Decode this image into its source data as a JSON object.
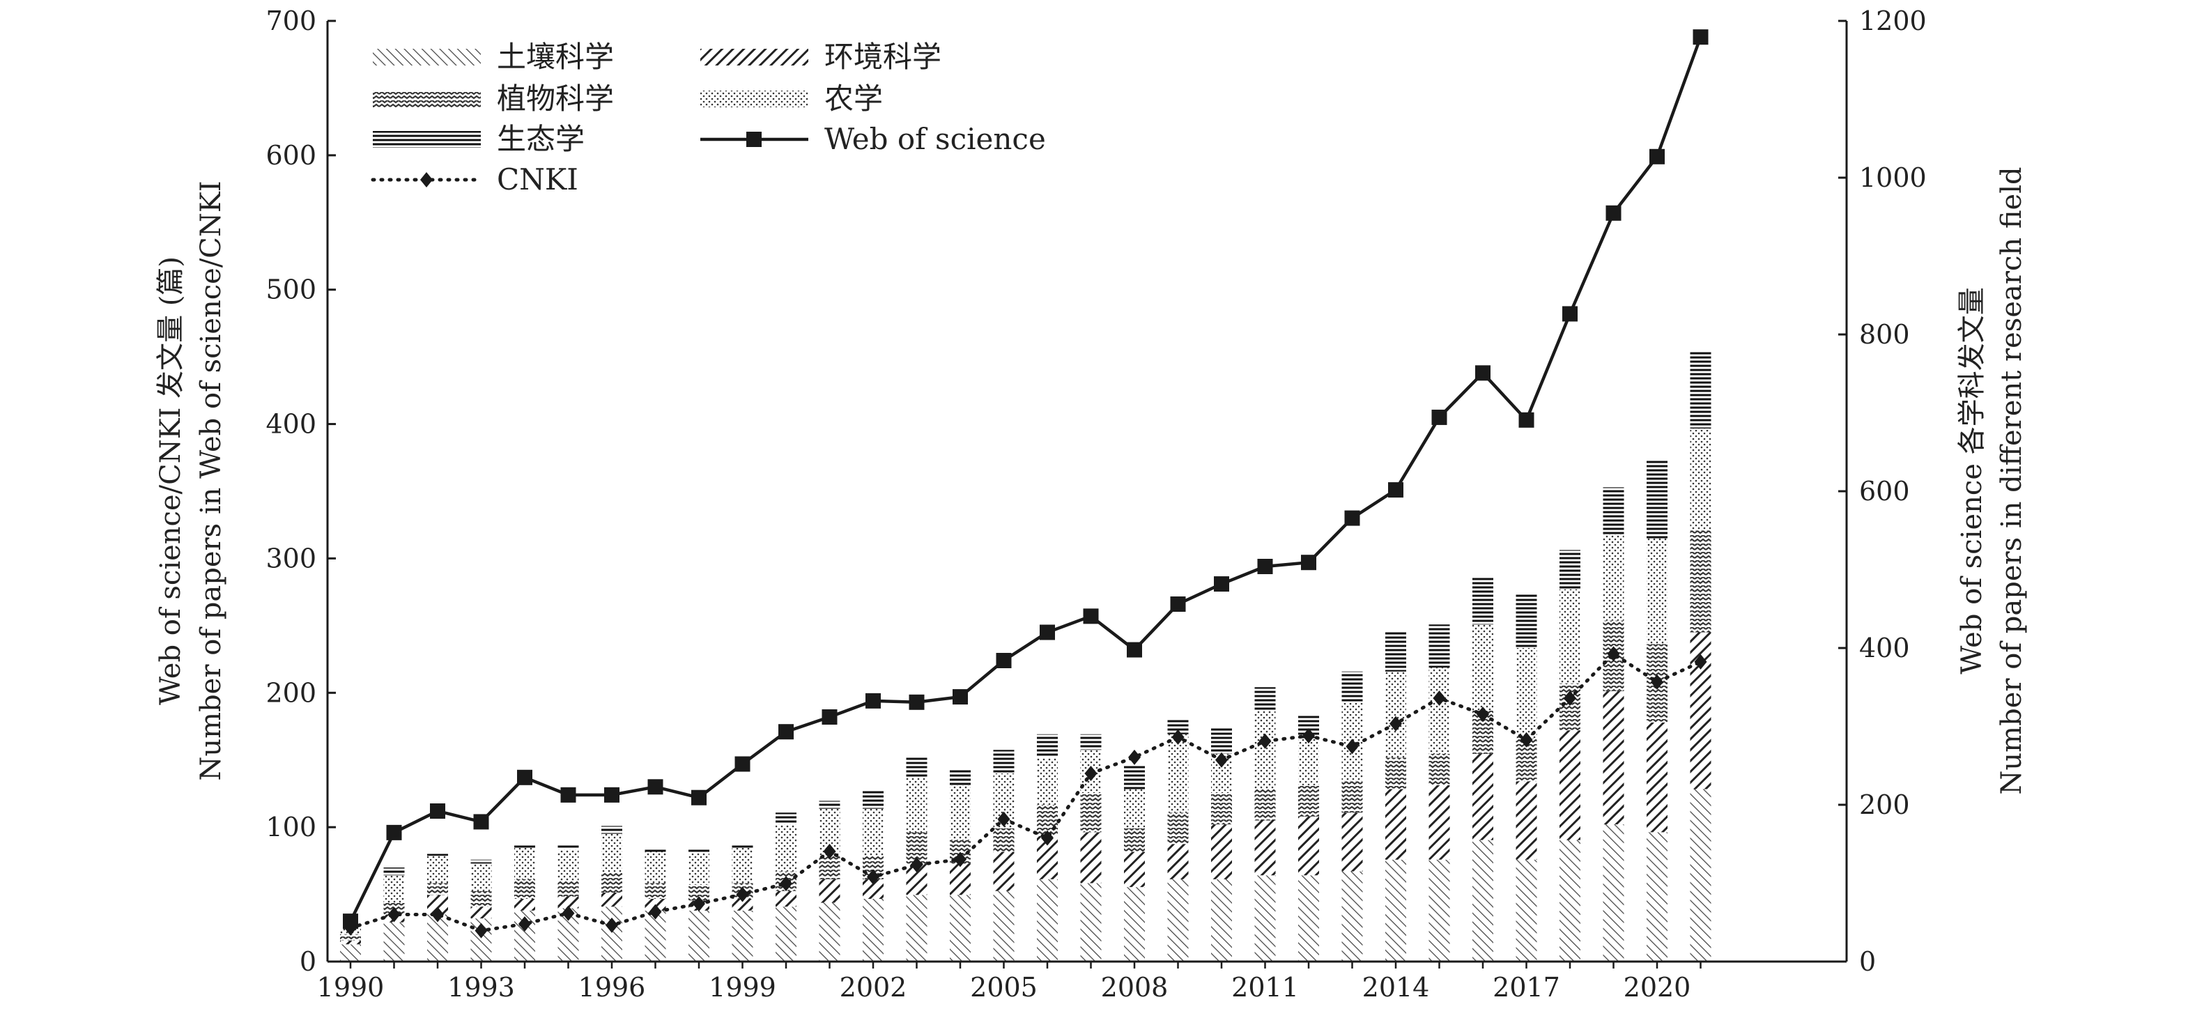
{
  "chart_data": {
    "type": "bar",
    "subtype": "stacked bar with line overlay, dual y-axis",
    "x_ticks": [
      "1990",
      "1993",
      "1996",
      "1999",
      "2002",
      "2005",
      "2008",
      "2011",
      "2014",
      "2017",
      "2020"
    ],
    "years": [
      1990,
      1991,
      1992,
      1993,
      1994,
      1995,
      1996,
      1997,
      1998,
      1999,
      2000,
      2001,
      2002,
      2003,
      2004,
      2005,
      2006,
      2007,
      2008,
      2009,
      2010,
      2011,
      2012,
      2013,
      2014,
      2015,
      2016,
      2017,
      2018,
      2019,
      2020,
      2021
    ],
    "left_axis": {
      "title_line1": "Web of science/CNKI 发文量 (篇)",
      "title_line2": "Number of papers in Web of science/CNKI",
      "ylim": [
        0,
        700
      ],
      "ticks": [
        0,
        100,
        200,
        300,
        400,
        500,
        600,
        700
      ]
    },
    "right_axis": {
      "title_line1": "Web of science 各学科发文量",
      "title_line2": "Number of papers in different research field",
      "ylim": [
        0,
        1200
      ],
      "ticks": [
        0,
        200,
        400,
        600,
        800,
        1000,
        1200
      ]
    },
    "bar_series": [
      {
        "name": "土壤科学",
        "pattern": "soil-pattern",
        "values": [
          22,
          50,
          60,
          55,
          65,
          68,
          70,
          65,
          65,
          65,
          70,
          75,
          80,
          85,
          85,
          90,
          105,
          100,
          95,
          105,
          105,
          110,
          110,
          115,
          130,
          130,
          155,
          130,
          155,
          175,
          165,
          220
        ]
      },
      {
        "name": "环境科学",
        "pattern": "env-pattern",
        "values": [
          5,
          10,
          25,
          15,
          15,
          15,
          18,
          15,
          13,
          15,
          20,
          30,
          25,
          40,
          40,
          50,
          55,
          65,
          45,
          45,
          70,
          70,
          75,
          75,
          90,
          95,
          110,
          100,
          140,
          170,
          140,
          200
        ]
      },
      {
        "name": "植物科学",
        "pattern": "plant-pattern",
        "values": [
          8,
          15,
          15,
          20,
          25,
          20,
          25,
          20,
          20,
          20,
          25,
          30,
          30,
          40,
          30,
          30,
          40,
          50,
          30,
          40,
          40,
          40,
          40,
          40,
          40,
          40,
          55,
          55,
          60,
          90,
          100,
          130
        ]
      },
      {
        "name": "农学",
        "pattern": "agri-pattern",
        "values": [
          7,
          35,
          35,
          35,
          40,
          40,
          50,
          40,
          40,
          45,
          60,
          60,
          60,
          70,
          70,
          70,
          60,
          55,
          50,
          100,
          50,
          100,
          60,
          100,
          110,
          110,
          110,
          115,
          120,
          110,
          135,
          130
        ]
      },
      {
        "name": "生态学",
        "pattern": "eco-pattern",
        "values": [
          0,
          10,
          5,
          5,
          5,
          6,
          10,
          4,
          5,
          5,
          15,
          10,
          25,
          25,
          20,
          30,
          30,
          20,
          30,
          20,
          35,
          30,
          30,
          40,
          50,
          55,
          60,
          70,
          50,
          60,
          100,
          100
        ]
      }
    ],
    "line_series": [
      {
        "name": "Web of science",
        "marker": "square",
        "axis": "left",
        "values": [
          30,
          96,
          112,
          104,
          137,
          124,
          124,
          130,
          122,
          147,
          171,
          182,
          194,
          193,
          197,
          224,
          245,
          257,
          232,
          266,
          281,
          294,
          297,
          330,
          351,
          405,
          438,
          403,
          482,
          557,
          599,
          688
        ]
      },
      {
        "name": "CNKI",
        "marker": "diamond",
        "axis": "left",
        "style": "dotted",
        "values": [
          25,
          35,
          35,
          23,
          28,
          36,
          27,
          37,
          43,
          50,
          58,
          82,
          63,
          72,
          76,
          106,
          92,
          140,
          152,
          167,
          150,
          164,
          168,
          160,
          177,
          196,
          184,
          165,
          196,
          229,
          208,
          223
        ]
      }
    ],
    "legend": {
      "placement": "top-left",
      "entries": [
        {
          "label": "土壤科学",
          "kind": "bar",
          "pattern": "soil-pattern"
        },
        {
          "label": "环境科学",
          "kind": "bar",
          "pattern": "env-pattern"
        },
        {
          "label": "植物科学",
          "kind": "bar",
          "pattern": "plant-pattern"
        },
        {
          "label": "农学",
          "kind": "bar",
          "pattern": "agri-pattern"
        },
        {
          "label": "生态学",
          "kind": "bar",
          "pattern": "eco-pattern"
        },
        {
          "label": "Web of science",
          "kind": "line",
          "marker": "square"
        },
        {
          "label": "CNKI",
          "kind": "line",
          "marker": "diamond"
        }
      ]
    },
    "grid": false,
    "colors": {
      "ink": "#1a1a1a"
    }
  }
}
